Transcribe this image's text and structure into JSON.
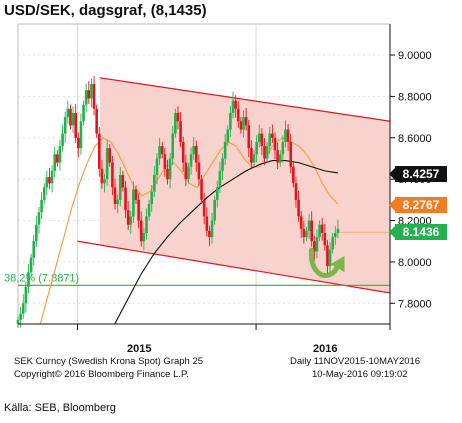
{
  "title": "USD/SEK, dagsgraf, (8,1435)",
  "source": "Källa: SEB, Bloomberg",
  "footer": {
    "line1_left": "SEK Curncy (Swedish Krona Spot) Graph 25",
    "line1_right": "Daily 11NOV2015-10MAY2016",
    "line2_left": "Copyright© 2016 Bloomberg Finance L.P.",
    "line2_right": "10-May-2016 09:19:02"
  },
  "colors": {
    "up_candle": "#22b14c",
    "down_candle": "#e0151d",
    "channel_fill": "#f8d2cc",
    "channel_line": "#e0151d",
    "ma_fast": "#f4a14a",
    "ma_slow": "#111111",
    "fib_line": "#22b14c",
    "arrow": "#7ab648"
  },
  "chart_data": {
    "type": "candlestick",
    "title": "USD/SEK, dagsgraf, (8,1435)",
    "xlabel": "",
    "ylabel": "",
    "ylim": [
      7.7,
      9.15
    ],
    "y_ticks": [
      "7.8000",
      "8.0000",
      "8.2000",
      "8.4000",
      "8.6000",
      "8.8000",
      "9.0000"
    ],
    "y_tick_values": [
      7.8,
      8.0,
      8.2,
      8.4,
      8.6,
      8.8,
      9.0
    ],
    "x_labels": [
      "2015",
      "2016"
    ],
    "annotations": {
      "fib_label": "38,2% (7.8871)",
      "fib_value": 7.8871
    },
    "channel": {
      "upper": [
        {
          "x": 0.22,
          "y": 8.89
        },
        {
          "x": 1.0,
          "y": 8.68
        }
      ],
      "lower": [
        {
          "x": 0.22,
          "y": 8.08
        },
        {
          "x": 1.0,
          "y": 7.85
        }
      ]
    },
    "last_values": [
      {
        "label": "8.4257",
        "value": 8.4257,
        "series": "ma_slow",
        "color": "#111111"
      },
      {
        "label": "8.2767",
        "value": 8.2767,
        "series": "ma_fast",
        "color": "#f47c20"
      },
      {
        "label": "8.1436",
        "value": 8.1436,
        "series": "price",
        "color": "#22b14c"
      }
    ],
    "price_path": [
      7.72,
      7.75,
      7.8,
      7.88,
      7.95,
      8.02,
      8.1,
      8.18,
      8.24,
      8.3,
      8.36,
      8.41,
      8.38,
      8.44,
      8.52,
      8.48,
      8.56,
      8.62,
      8.7,
      8.74,
      8.66,
      8.72,
      8.6,
      8.55,
      8.68,
      8.76,
      8.83,
      8.79,
      8.86,
      8.74,
      8.62,
      8.45,
      8.38,
      8.4,
      8.55,
      8.48,
      8.36,
      8.28,
      8.3,
      8.42,
      8.36,
      8.25,
      8.18,
      8.22,
      8.35,
      8.3,
      8.2,
      8.1,
      8.14,
      8.22,
      8.28,
      8.34,
      8.42,
      8.5,
      8.56,
      8.52,
      8.45,
      8.4,
      8.5,
      8.62,
      8.72,
      8.68,
      8.58,
      8.48,
      8.4,
      8.46,
      8.52,
      8.56,
      8.48,
      8.4,
      8.3,
      8.22,
      8.15,
      8.12,
      8.2,
      8.3,
      8.36,
      8.44,
      8.5,
      8.58,
      8.64,
      8.72,
      8.78,
      8.74,
      8.68,
      8.64,
      8.7,
      8.66,
      8.55,
      8.48,
      8.52,
      8.58,
      8.62,
      8.56,
      8.5,
      8.56,
      8.62,
      8.6,
      8.54,
      8.48,
      8.52,
      8.58,
      8.64,
      8.58,
      8.46,
      8.38,
      8.3,
      8.22,
      8.16,
      8.12,
      8.15,
      8.2,
      8.1,
      8.05,
      8.12,
      8.18,
      8.14,
      8.08,
      7.98,
      8.06,
      8.12,
      8.14,
      8.16
    ],
    "ma_fast": [
      7.7,
      7.84,
      7.98,
      8.12,
      8.26,
      8.38,
      8.48,
      8.56,
      8.6,
      8.58,
      8.52,
      8.44,
      8.36,
      8.32,
      8.34,
      8.4,
      8.46,
      8.48,
      8.44,
      8.38,
      8.36,
      8.42,
      8.48,
      8.54,
      8.58,
      8.56,
      8.5,
      8.46,
      8.46,
      8.52,
      8.58,
      8.6,
      8.58,
      8.56,
      8.52,
      8.46,
      8.38,
      8.32,
      8.28
    ],
    "ma_slow": [
      7.7,
      7.82,
      7.94,
      8.04,
      8.12,
      8.19,
      8.25,
      8.31,
      8.36,
      8.4,
      8.44,
      8.47,
      8.49,
      8.49,
      8.48,
      8.46,
      8.44,
      8.43
    ]
  }
}
